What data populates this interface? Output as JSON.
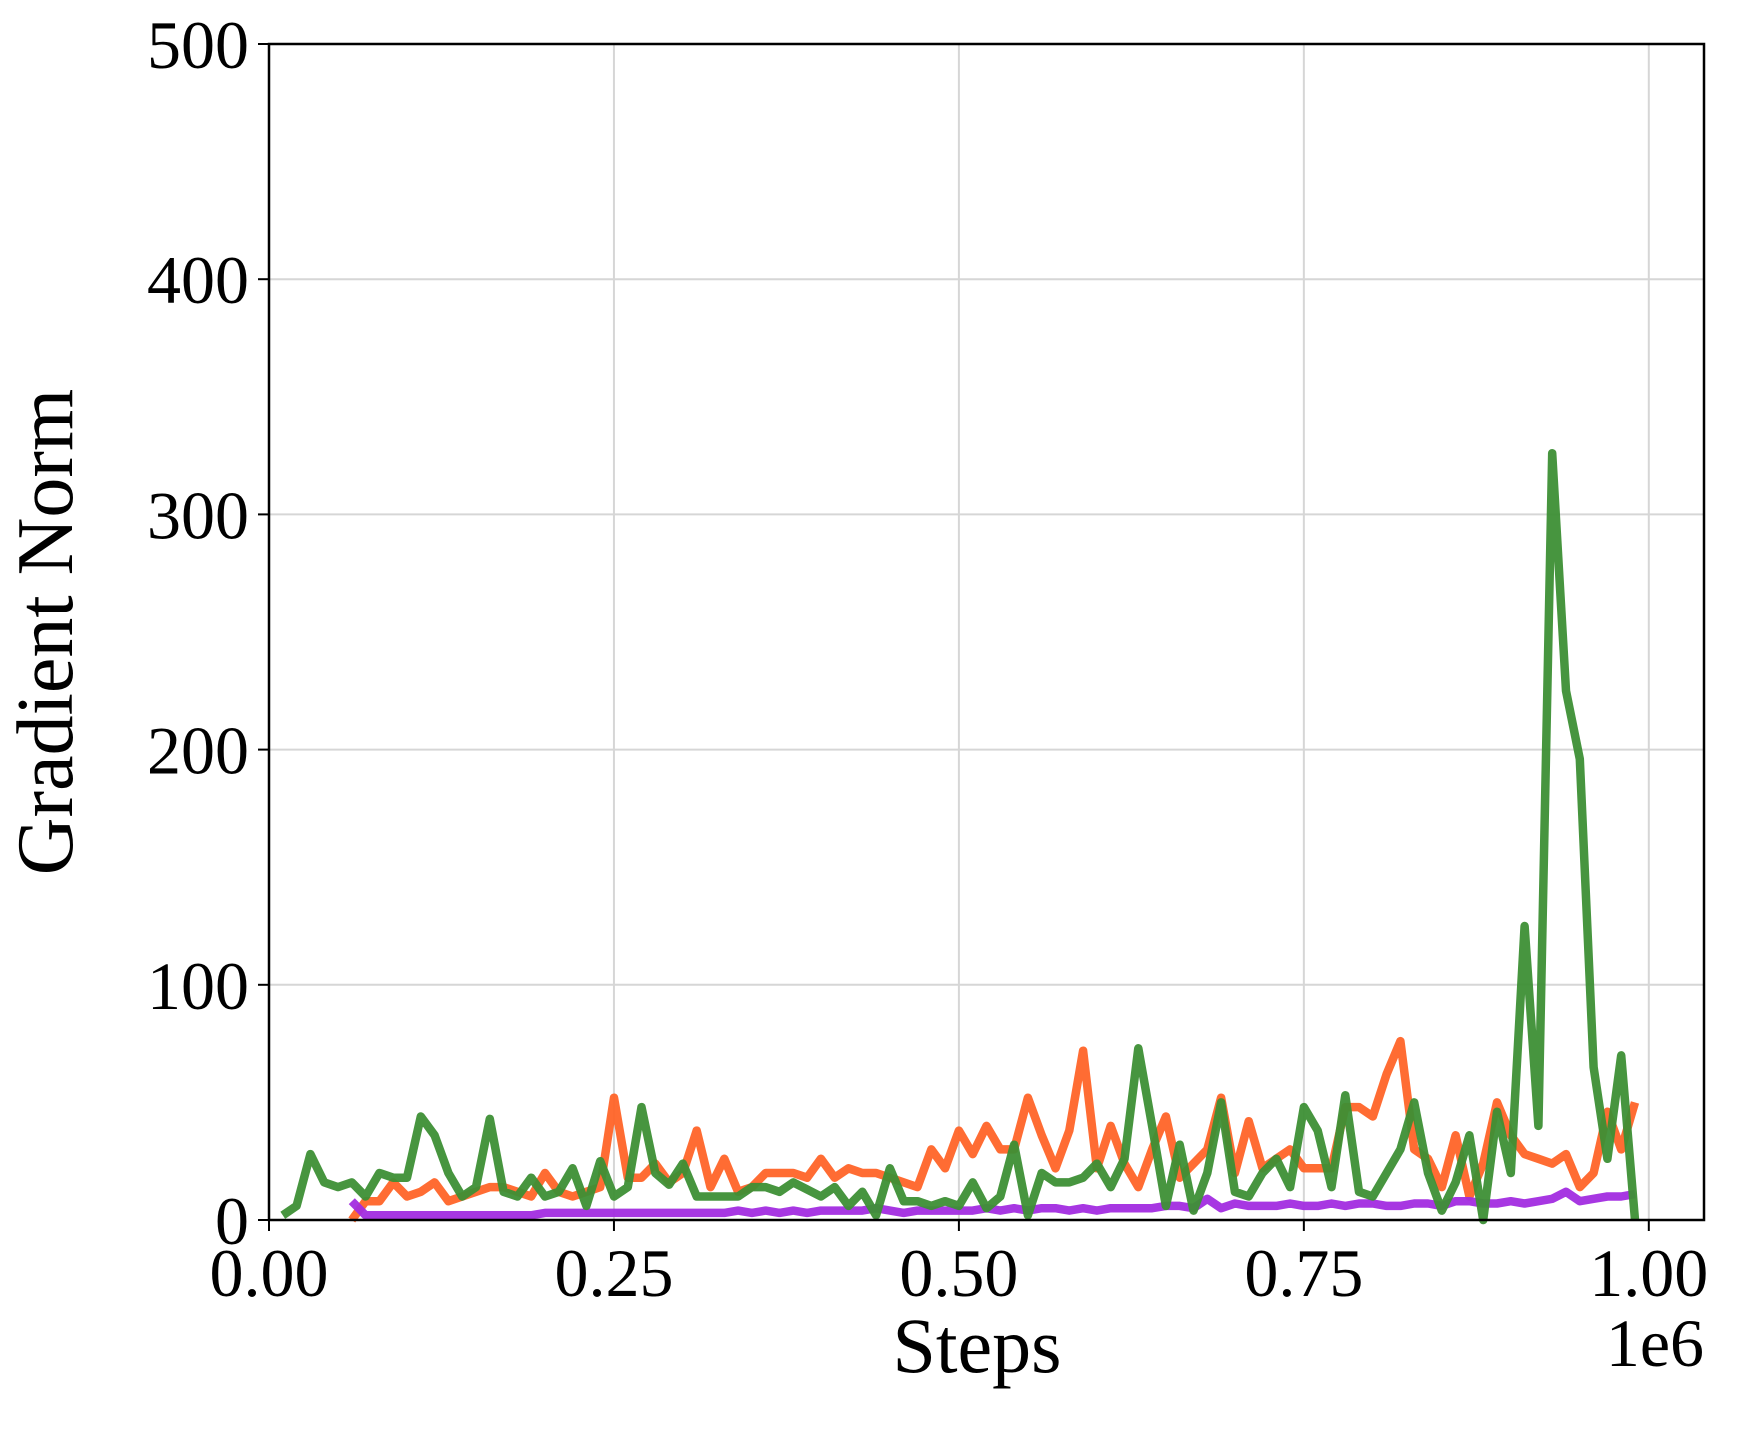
{
  "chart_data": {
    "type": "line",
    "x_label": "Steps",
    "y_label": "Gradient Norm",
    "x_offset_text": "1e6",
    "x": [
      10000,
      20000,
      30000,
      40000,
      50000,
      60000,
      70000,
      80000,
      90000,
      100000,
      110000,
      120000,
      130000,
      140000,
      150000,
      160000,
      170000,
      180000,
      190000,
      200000,
      210000,
      220000,
      230000,
      240000,
      250000,
      260000,
      270000,
      280000,
      290000,
      300000,
      310000,
      320000,
      330000,
      340000,
      350000,
      360000,
      370000,
      380000,
      390000,
      400000,
      410000,
      420000,
      430000,
      440000,
      450000,
      460000,
      470000,
      480000,
      490000,
      500000,
      510000,
      520000,
      530000,
      540000,
      550000,
      560000,
      570000,
      580000,
      590000,
      600000,
      610000,
      620000,
      630000,
      640000,
      650000,
      660000,
      670000,
      680000,
      690000,
      700000,
      710000,
      720000,
      730000,
      740000,
      750000,
      760000,
      770000,
      780000,
      790000,
      800000,
      810000,
      820000,
      830000,
      840000,
      850000,
      860000,
      870000,
      880000,
      890000,
      900000,
      910000,
      920000,
      930000,
      940000,
      950000,
      960000,
      970000,
      980000,
      990000
    ],
    "series": [
      {
        "color": "#ff6428",
        "values": [
          null,
          null,
          null,
          null,
          null,
          0,
          8,
          8,
          16,
          10,
          12,
          16,
          8,
          10,
          12,
          14,
          14,
          12,
          10,
          20,
          12,
          10,
          12,
          14,
          52,
          18,
          18,
          24,
          16,
          20,
          38,
          14,
          26,
          12,
          14,
          20,
          20,
          20,
          18,
          26,
          18,
          22,
          20,
          20,
          18,
          16,
          14,
          30,
          22,
          38,
          28,
          40,
          30,
          30,
          52,
          36,
          22,
          38,
          72,
          22,
          40,
          24,
          14,
          30,
          44,
          18,
          24,
          30,
          52,
          20,
          42,
          22,
          26,
          30,
          22,
          22,
          22,
          48,
          48,
          44,
          62,
          76,
          30,
          26,
          14,
          36,
          10,
          24,
          50,
          36,
          28,
          26,
          24,
          28,
          14,
          20,
          46,
          30,
          50
        ]
      },
      {
        "color": "#a22ce0",
        "values": [
          null,
          null,
          null,
          null,
          null,
          8,
          2,
          2,
          2,
          2,
          2,
          2,
          2,
          2,
          2,
          2,
          2,
          2,
          2,
          3,
          3,
          3,
          3,
          3,
          3,
          3,
          3,
          3,
          3,
          3,
          3,
          3,
          3,
          4,
          3,
          4,
          3,
          4,
          3,
          4,
          4,
          4,
          4,
          5,
          4,
          3,
          4,
          4,
          4,
          4,
          4,
          5,
          4,
          5,
          4,
          5,
          5,
          4,
          5,
          4,
          5,
          5,
          5,
          5,
          6,
          6,
          5,
          9,
          5,
          7,
          6,
          6,
          6,
          7,
          6,
          6,
          7,
          6,
          7,
          7,
          6,
          6,
          7,
          7,
          6,
          8,
          8,
          7,
          7,
          8,
          7,
          8,
          9,
          12,
          8,
          9,
          10,
          10,
          11
        ]
      },
      {
        "color": "#3d8f35",
        "values": [
          2,
          6,
          28,
          16,
          14,
          16,
          10,
          20,
          18,
          18,
          44,
          36,
          20,
          10,
          14,
          43,
          12,
          10,
          18,
          10,
          12,
          22,
          6,
          25,
          10,
          14,
          48,
          20,
          15,
          24,
          10,
          10,
          10,
          10,
          14,
          14,
          12,
          16,
          13,
          10,
          14,
          6,
          12,
          2,
          22,
          8,
          8,
          6,
          8,
          6,
          16,
          5,
          10,
          32,
          2,
          20,
          16,
          16,
          18,
          24,
          14,
          26,
          73,
          40,
          6,
          32,
          4,
          20,
          50,
          12,
          10,
          20,
          26,
          14,
          48,
          38,
          14,
          53,
          12,
          10,
          20,
          30,
          50,
          20,
          4,
          16,
          36,
          0,
          46,
          20,
          125,
          40,
          326,
          225,
          196,
          65,
          26,
          70,
          0
        ]
      }
    ],
    "xlim": [
      0,
      1040000
    ],
    "ylim": [
      0,
      500
    ],
    "xticks": [
      {
        "value": 0,
        "label": "0.00"
      },
      {
        "value": 250000,
        "label": "0.25"
      },
      {
        "value": 500000,
        "label": "0.50"
      },
      {
        "value": 750000,
        "label": "0.75"
      },
      {
        "value": 1000000,
        "label": "1.00"
      }
    ],
    "yticks": [
      0,
      100,
      200,
      300,
      400,
      500
    ],
    "grid": true
  }
}
